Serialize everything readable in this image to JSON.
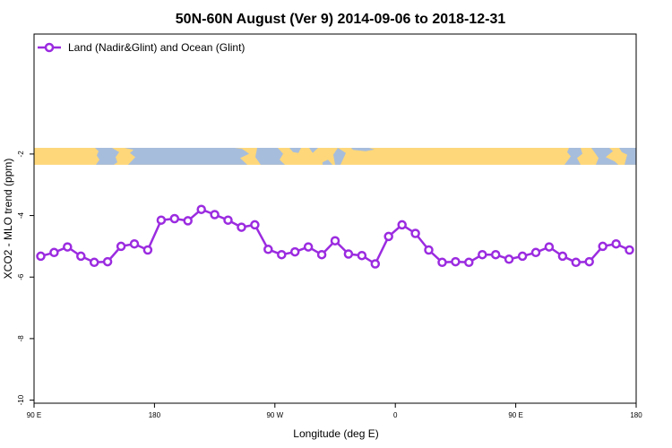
{
  "chart_data": {
    "type": "line",
    "title": "50N-60N August (Ver 9)   2014-09-06 to 2018-12-31",
    "xlabel": "Longitude (deg E)",
    "ylabel": "XCO2 - MLO trend (ppm)",
    "xlim": [
      90,
      540
    ],
    "ylim": [
      -10.1,
      1.9
    ],
    "x_ticks": [
      {
        "value": 90,
        "label": "90 E"
      },
      {
        "value": 180,
        "label": "180"
      },
      {
        "value": 270,
        "label": "90 W"
      },
      {
        "value": 360,
        "label": "0"
      },
      {
        "value": 450,
        "label": "90 E"
      },
      {
        "value": 540,
        "label": "180"
      }
    ],
    "y_ticks": [
      -10,
      -8,
      -6,
      -4,
      -2
    ],
    "legend_position": "top-left",
    "grid": false,
    "map_band": {
      "y_top": -1.8,
      "y_bottom": -2.35,
      "ocean_color": "#a7bddc",
      "land_color": "#fdd77a"
    },
    "series": [
      {
        "name": "Land (Nadir&Glint) and Ocean (Glint)",
        "color": "#9b2be0",
        "x": [
          95,
          105,
          115,
          125,
          135,
          145,
          155,
          165,
          175,
          185,
          195,
          205,
          215,
          225,
          235,
          245,
          255,
          265,
          275,
          285,
          295,
          305,
          315,
          325,
          335,
          345,
          355,
          365,
          375,
          385,
          395,
          405,
          415,
          425,
          435,
          445,
          455,
          465,
          475,
          485,
          495,
          505,
          515,
          525,
          535
        ],
        "values": [
          -5.32,
          -5.2,
          -5.02,
          -5.32,
          -5.52,
          -5.5,
          -5.0,
          -4.92,
          -5.12,
          -4.15,
          -4.1,
          -4.17,
          -3.8,
          -3.97,
          -4.15,
          -4.38,
          -4.3,
          -5.1,
          -5.27,
          -5.18,
          -5.02,
          -5.27,
          -4.82,
          -5.25,
          -5.3,
          -5.57,
          -4.68,
          -4.3,
          -4.58,
          -5.12,
          -5.52,
          -5.5,
          -5.52,
          -5.27,
          -5.27,
          -5.42,
          -5.32,
          -5.2,
          -5.02,
          -5.32,
          -5.52,
          -5.5,
          -5.0,
          -4.92,
          -5.12
        ]
      }
    ]
  }
}
